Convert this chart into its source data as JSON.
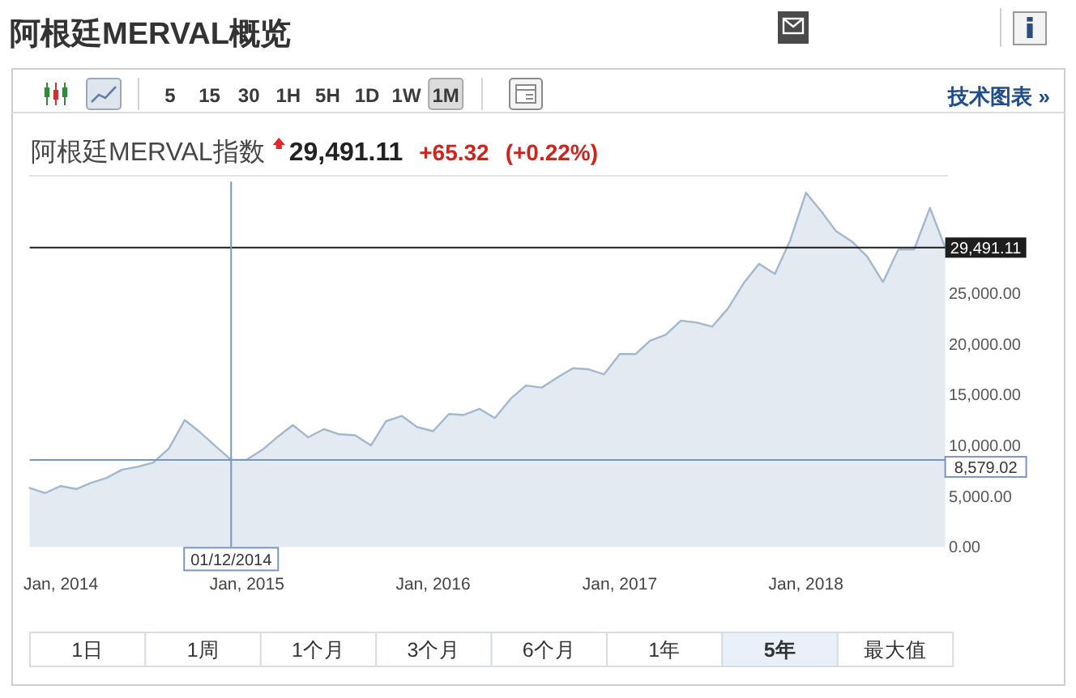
{
  "chart_data": {
    "type": "area",
    "title": "阿根廷MERVAL概览",
    "subtitle": "阿根廷MERVAL指数",
    "annotations": [
      "29,491.11",
      "+65.32",
      "(+0.22%)",
      "5",
      "15",
      "30",
      "1H",
      "5H",
      "1D",
      "1W",
      "1M",
      "技术图表 »",
      "1日",
      "1周",
      "1个月",
      "3个月",
      "6个月",
      "1年",
      "5年",
      "最大值"
    ],
    "x": [
      "2013-11",
      "2013-12",
      "2014-01",
      "2014-02",
      "2014-03",
      "2014-04",
      "2014-05",
      "2014-06",
      "2014-07",
      "2014-08",
      "2014-09",
      "2014-10",
      "2014-11",
      "2014-12",
      "2015-01",
      "2015-02",
      "2015-03",
      "2015-04",
      "2015-05",
      "2015-06",
      "2015-07",
      "2015-08",
      "2015-09",
      "2015-10",
      "2015-11",
      "2015-12",
      "2016-01",
      "2016-02",
      "2016-03",
      "2016-04",
      "2016-05",
      "2016-06",
      "2016-07",
      "2016-08",
      "2016-09",
      "2016-10",
      "2016-11",
      "2016-12",
      "2017-01",
      "2017-02",
      "2017-03",
      "2017-04",
      "2017-05",
      "2017-06",
      "2017-07",
      "2017-08",
      "2017-09",
      "2017-10",
      "2017-11",
      "2017-12",
      "2018-01",
      "2018-02",
      "2018-03",
      "2018-04",
      "2018-05",
      "2018-06",
      "2018-07",
      "2018-08",
      "2018-09",
      "2018-10"
    ],
    "series": [
      {
        "color": "#a3b8cf",
        "values": [
          5800,
          5300,
          6000,
          5700,
          6300,
          6800,
          7600,
          7900,
          8300,
          9700,
          12500,
          11300,
          9900,
          8579.02,
          8600,
          9600,
          10800,
          12000,
          10800,
          11600,
          11100,
          11000,
          10000,
          12400,
          12900,
          11800,
          11400,
          13100,
          13000,
          13600,
          12700,
          14600,
          15900,
          15700,
          16700,
          17600,
          17500,
          17000,
          19000,
          19000,
          20300,
          20900,
          22300,
          22100,
          21700,
          23500,
          26000,
          27900,
          26900,
          30200,
          34900,
          33000,
          31100,
          30100,
          28600,
          26100,
          29300,
          29300,
          33400,
          29491.11
        ]
      }
    ],
    "xlim": [
      "2013-11",
      "2018-10"
    ],
    "xticks": [
      {
        "value": "2014-01",
        "label": "Jan, 2014"
      },
      {
        "value": "2015-01",
        "label": "Jan, 2015"
      },
      {
        "value": "2016-01",
        "label": "Jan, 2016"
      },
      {
        "value": "2017-01",
        "label": "Jan, 2017"
      },
      {
        "value": "2018-01",
        "label": "Jan, 2018"
      }
    ],
    "ylim": [
      0,
      36000
    ],
    "yticks": [
      {
        "value": 0,
        "label": "0.00"
      },
      {
        "value": 5000,
        "label": "5,000.00"
      },
      {
        "value": 10000,
        "label": "10,000.00"
      },
      {
        "value": 15000,
        "label": "15,000.00"
      },
      {
        "value": 20000,
        "label": "20,000.00"
      },
      {
        "value": 25000,
        "label": "25,000.00"
      }
    ],
    "ref_lines": [
      {
        "axis": "y",
        "value": 29491.11,
        "label": "29,491.11",
        "color": "#1e1e1e"
      },
      {
        "axis": "y",
        "value": 8579.02,
        "label": "8,579.02",
        "color": "#7a97bb"
      },
      {
        "axis": "x",
        "value": "2014-12",
        "label": "01/12/2014",
        "color": "#7a97bb"
      }
    ]
  }
}
